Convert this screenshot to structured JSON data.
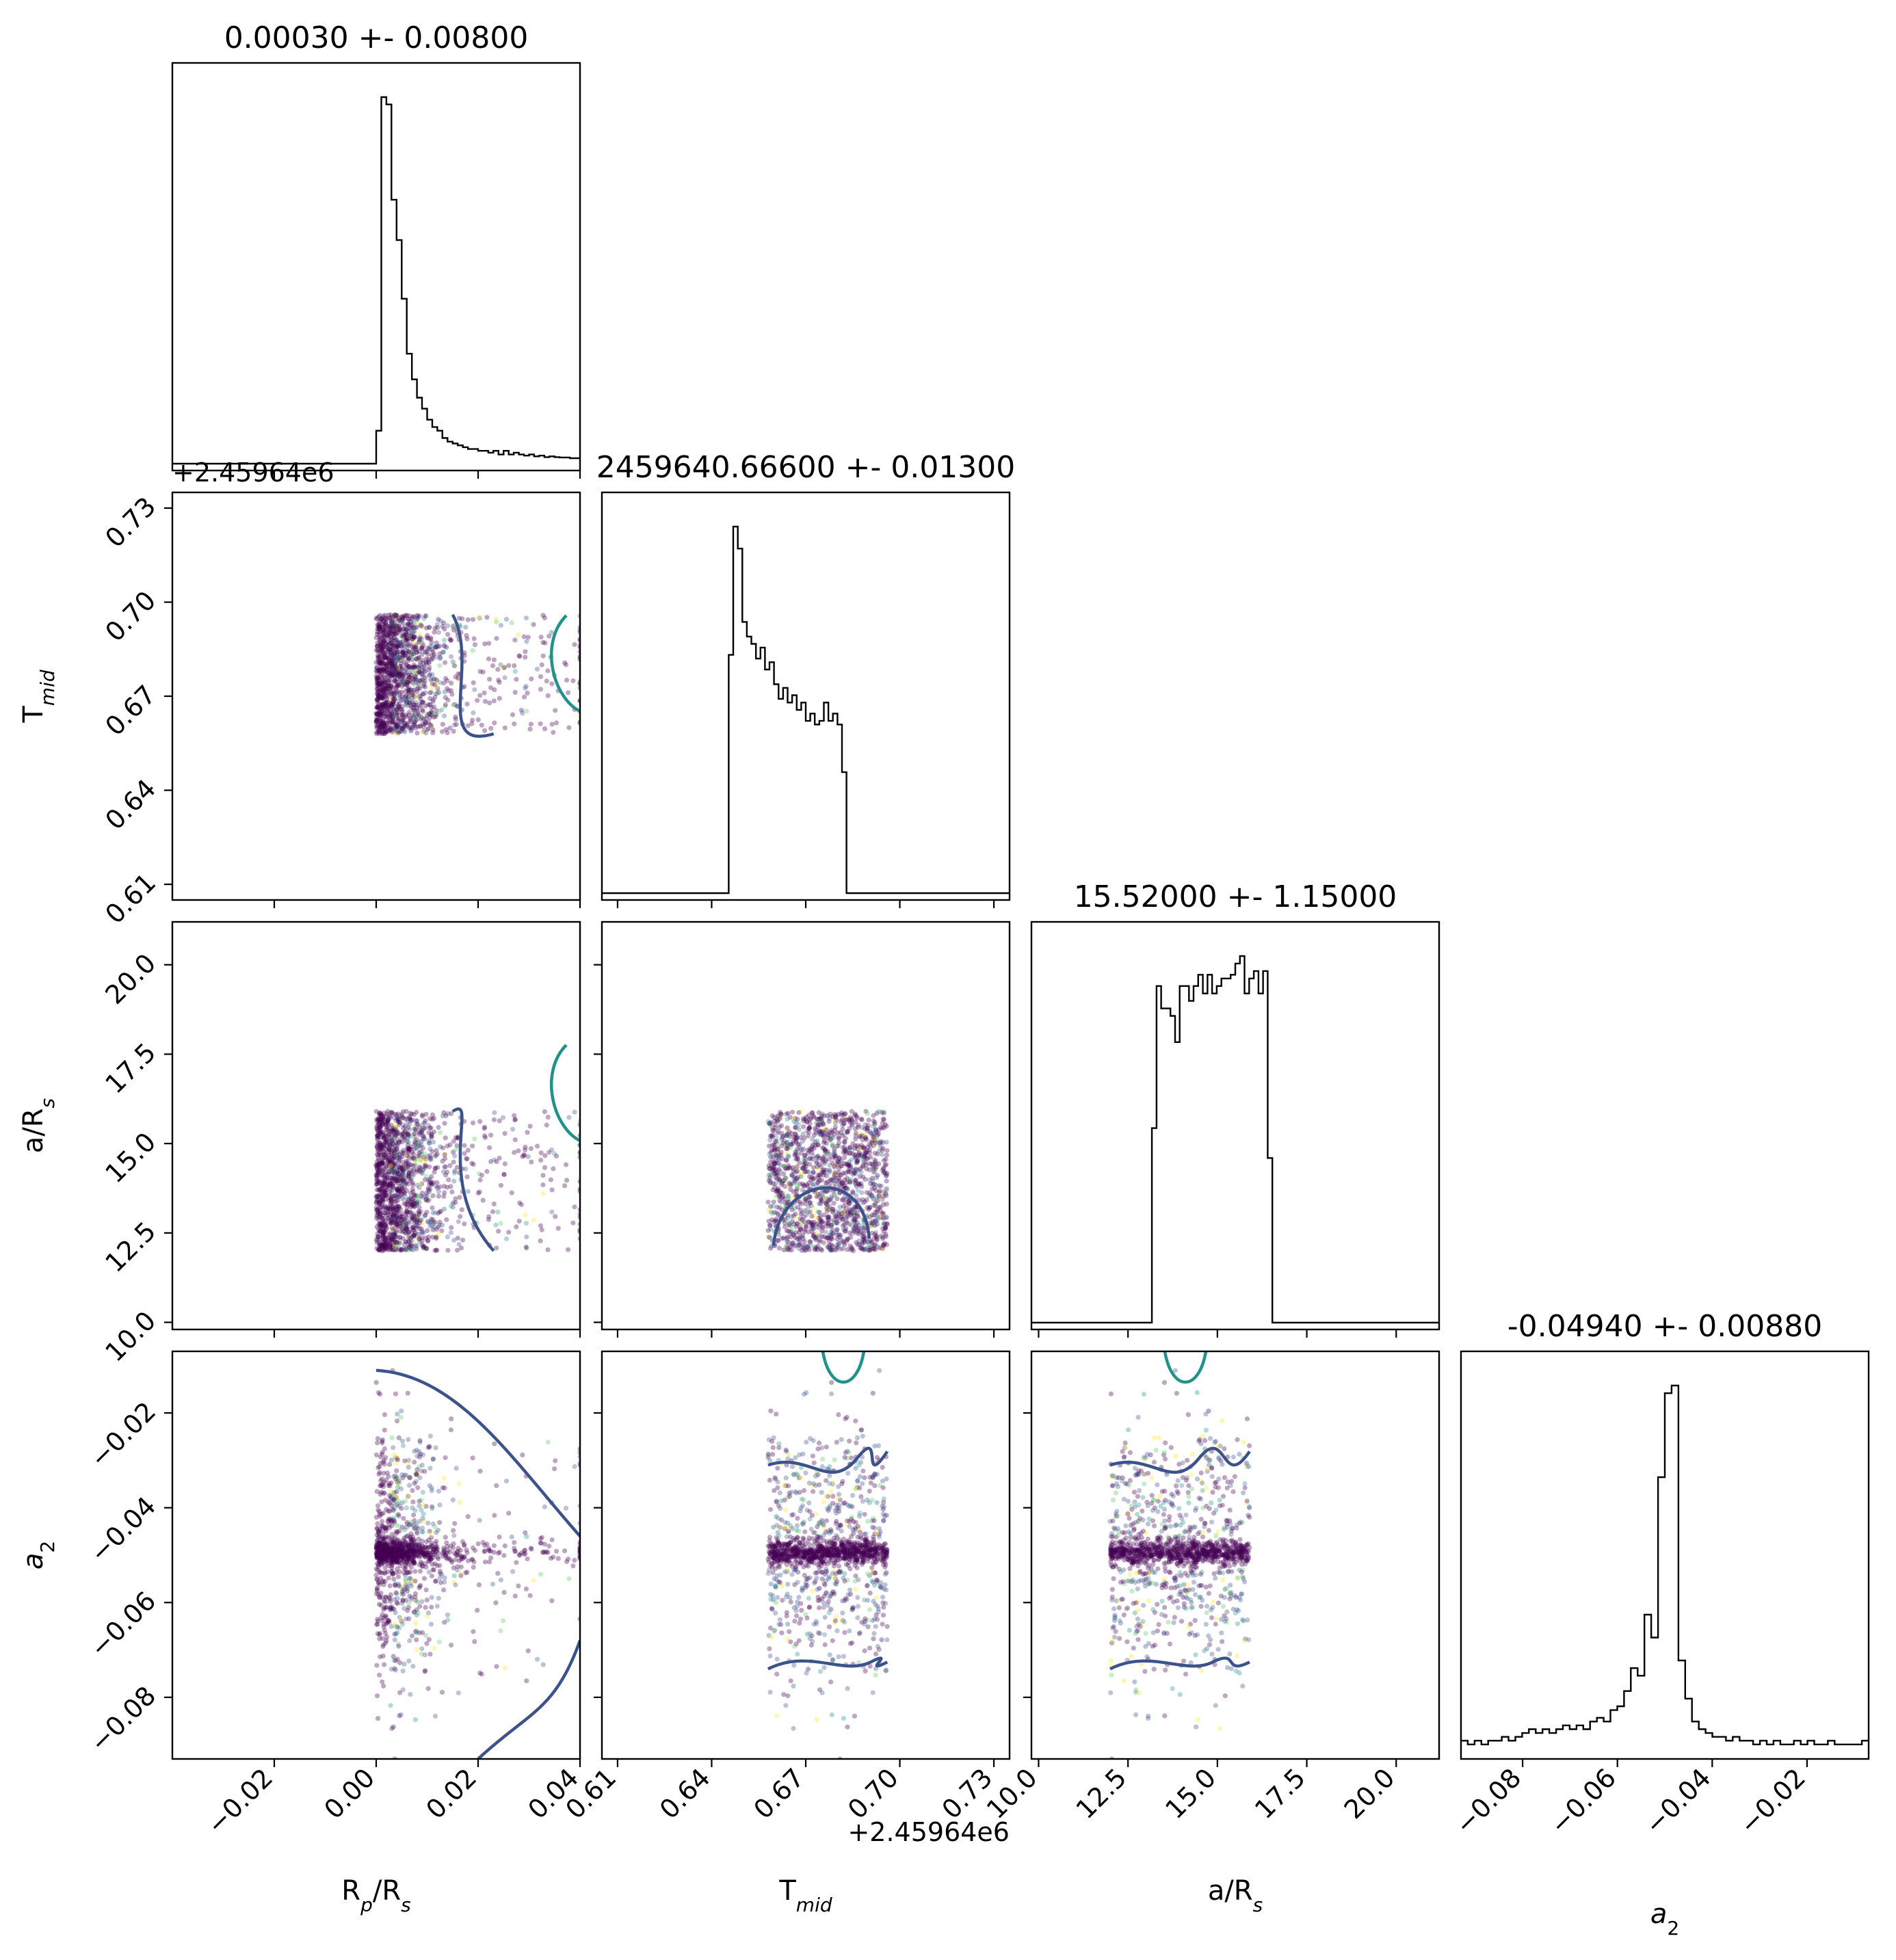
{
  "chart_data": {
    "type": "corner",
    "parameters": [
      {
        "label": "R",
        "sub": "p",
        "mid": "/R",
        "sub2": "s",
        "title": "0.00030 +- 0.00800",
        "xlim": [
          -0.04,
          0.04
        ],
        "offset": "+2.45964e6",
        "ticks": [
          -0.02,
          0.0,
          0.02,
          0.04
        ],
        "tick_labels": [
          "−0.02",
          "0.00",
          "0.02",
          "0.04"
        ]
      },
      {
        "label": "T",
        "sub": "mid",
        "mid": "",
        "sub2": "",
        "title": "2459640.66600 +- 0.01300",
        "xlim": [
          0.605,
          0.735
        ],
        "offset": "+2.45964e6",
        "ticks": [
          0.61,
          0.64,
          0.67,
          0.7,
          0.73
        ],
        "tick_labels": [
          "0.61",
          "0.64",
          "0.67",
          "0.70",
          "0.73"
        ]
      },
      {
        "label": "a/R",
        "sub": "s",
        "mid": "",
        "sub2": "",
        "title": "15.52000 +- 1.15000",
        "xlim": [
          9.8,
          21.2
        ],
        "ticks": [
          10.0,
          12.5,
          15.0,
          17.5,
          20.0
        ],
        "tick_labels": [
          "10.0",
          "12.5",
          "15.0",
          "17.5",
          "20.0"
        ]
      },
      {
        "label": "a",
        "sub": "2",
        "mid": "",
        "sub2": "",
        "italic": true,
        "title": "-0.04940 +- 0.00880",
        "xlim": [
          -0.093,
          -0.007
        ],
        "ticks": [
          -0.08,
          -0.06,
          -0.04,
          -0.02
        ],
        "tick_labels": [
          "−0.08",
          "−0.06",
          "−0.04",
          "−0.02"
        ]
      }
    ],
    "histograms": [
      {
        "edges_range": [
          -0.04,
          0.04
        ],
        "counts": [
          0,
          0,
          0,
          0,
          0,
          0,
          0,
          0,
          0,
          0,
          0,
          0,
          0,
          0,
          0,
          0,
          0,
          0,
          0,
          0,
          0,
          0,
          0,
          0,
          0,
          0,
          0,
          0,
          0,
          0,
          0,
          0,
          0,
          0,
          0,
          0,
          0,
          0,
          0,
          0,
          9,
          100,
          98,
          72,
          61,
          45,
          30,
          23,
          18,
          15,
          12,
          10,
          9,
          7,
          6,
          5.5,
          5,
          4.5,
          4,
          4,
          3.5,
          3.5,
          3,
          3.5,
          2.5,
          3.5,
          2.5,
          3,
          2.5,
          2.2,
          2.5,
          2,
          2.2,
          1.8,
          2,
          1.8,
          1.7,
          1.7,
          1.5,
          1.5
        ]
      },
      {
        "edges_range": [
          0.605,
          0.735
        ],
        "counts": [
          0,
          0,
          0,
          0,
          0,
          0,
          0,
          0,
          0,
          0,
          0,
          0,
          0,
          0,
          0,
          0,
          0,
          0,
          0,
          0,
          0,
          0,
          0,
          0,
          0,
          0,
          0,
          0,
          65,
          100,
          94,
          74,
          70,
          68,
          64,
          67,
          61,
          63,
          57,
          53,
          56,
          52,
          54,
          50,
          52,
          47,
          49,
          46,
          47,
          52,
          47,
          49,
          46,
          33,
          0,
          0,
          0,
          0,
          0,
          0,
          0,
          0,
          0,
          0,
          0,
          0,
          0,
          0,
          0,
          0,
          0,
          0,
          0,
          0,
          0,
          0,
          0,
          0,
          0,
          0,
          0,
          0,
          0,
          0,
          0,
          0,
          0,
          0,
          0,
          0
        ]
      },
      {
        "edges_range": [
          9.8,
          21.2
        ],
        "counts": [
          0,
          0,
          0,
          0,
          0,
          0,
          0,
          0,
          0,
          0,
          0,
          0,
          0,
          0,
          0,
          0,
          0,
          0,
          0,
          0,
          0,
          0,
          0,
          0,
          0,
          0,
          52,
          90,
          84,
          84,
          82,
          75,
          90,
          90,
          86,
          90,
          93,
          88,
          93,
          88,
          90,
          92,
          92,
          93,
          96,
          98,
          88,
          92,
          94,
          88,
          94,
          44,
          0,
          0,
          0,
          0,
          0,
          0,
          0,
          0,
          0,
          0,
          0,
          0,
          0,
          0,
          0,
          0,
          0,
          0,
          0,
          0,
          0,
          0,
          0,
          0,
          0,
          0,
          0,
          0,
          0,
          0,
          0,
          0,
          0,
          0,
          0,
          0
        ]
      },
      {
        "edges_range": [
          -0.093,
          -0.007
        ],
        "counts": [
          3,
          2,
          3,
          2,
          3,
          3,
          4,
          3,
          4,
          5,
          6,
          5,
          6,
          5,
          6,
          7,
          6,
          7,
          6,
          8,
          9,
          8,
          11,
          12,
          16,
          22,
          20,
          36,
          30,
          72,
          94,
          96,
          24,
          14,
          8,
          6,
          5,
          4,
          4,
          3,
          4,
          3,
          3,
          2,
          3,
          2,
          3,
          2,
          2,
          3,
          2,
          3,
          2,
          2,
          3,
          2,
          2,
          2,
          2,
          3
        ]
      }
    ],
    "scatter_params": {
      "data_bounds": [
        [
          0.0,
          0.04
        ],
        [
          0.658,
          0.696
        ],
        [
          12.0,
          15.9
        ],
        [
          -0.093,
          -0.007
        ]
      ],
      "dense_center": [
        0.002,
        0.677,
        13.9,
        -0.0495
      ],
      "colors": [
        "#440154",
        "#3b528b",
        "#21918c",
        "#5ec962",
        "#fde725"
      ]
    },
    "contour_colors": [
      "#3b528b",
      "#21918c"
    ],
    "grid": false
  }
}
